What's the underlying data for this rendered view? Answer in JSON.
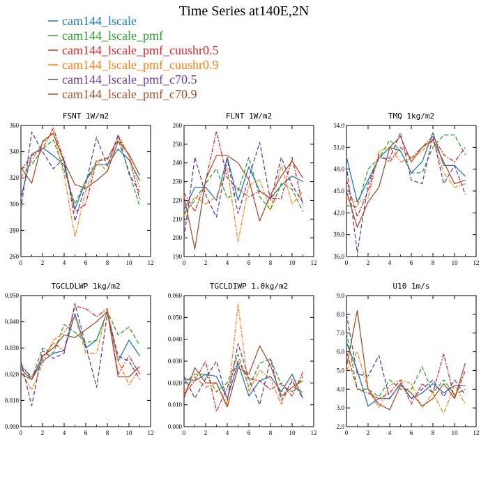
{
  "title": "Time Series at140E,2N",
  "legend": [
    {
      "label": "cam144_lscale",
      "color": "#1f77b4"
    },
    {
      "label": "cam144_lscale_pmf",
      "color": "#2ca02c"
    },
    {
      "label": "cam144_lscale_pmf_cuushr0.5",
      "color": "#d62728"
    },
    {
      "label": "cam144_lscale_pmf_cuushr0.9",
      "color": "#ff7f0e"
    },
    {
      "label": "cam144_lscale_pmf_c70.5",
      "color": "#6a3d9a"
    },
    {
      "label": "cam144_lscale_pmf_c70.9",
      "color": "#a0522d"
    }
  ],
  "chart_data": [
    {
      "type": "line",
      "title": "FSNT   1W/m2",
      "x": [
        0,
        1,
        2,
        3,
        4,
        5,
        6,
        7,
        8,
        9,
        10,
        11
      ],
      "xlim": [
        0,
        12
      ],
      "xticks": [
        "0",
        "2",
        "4",
        "6",
        "8",
        "10",
        "12"
      ],
      "ylim": [
        260,
        360
      ],
      "yticks": [
        "260",
        "280",
        "300",
        "320",
        "340",
        "360"
      ],
      "series": [
        {
          "name": "cam144_lscale",
          "values": [
            305,
            338,
            343,
            337,
            330,
            296,
            318,
            330,
            330,
            342,
            334,
            318
          ]
        },
        {
          "name": "cam144_lscale_pmf",
          "values": [
            327,
            330,
            342,
            349,
            326,
            300,
            318,
            333,
            335,
            349,
            325,
            298
          ]
        },
        {
          "name": "cam144_lscale_pmf_cuushr0.5",
          "values": [
            326,
            337,
            342,
            358,
            333,
            294,
            300,
            333,
            334,
            351,
            337,
            303
          ]
        },
        {
          "name": "cam144_lscale_pmf_cuushr0.9",
          "values": [
            320,
            333,
            347,
            355,
            322,
            275,
            310,
            333,
            325,
            353,
            337,
            313
          ]
        },
        {
          "name": "cam144_lscale_pmf_c70.5",
          "values": [
            296,
            355,
            340,
            327,
            335,
            287,
            315,
            351,
            329,
            353,
            323,
            309
          ]
        },
        {
          "name": "cam144_lscale_pmf_c70.9",
          "values": [
            328,
            316,
            348,
            354,
            332,
            315,
            312,
            318,
            325,
            348,
            338,
            322
          ]
        }
      ]
    },
    {
      "type": "line",
      "title": "FLNT   1W/m2",
      "x": [
        0,
        1,
        2,
        3,
        4,
        5,
        6,
        7,
        8,
        9,
        10,
        11
      ],
      "xlim": [
        0,
        12
      ],
      "xticks": [
        "0",
        "2",
        "4",
        "6",
        "8",
        "10",
        "12"
      ],
      "ylim": [
        190,
        260
      ],
      "yticks": [
        "190",
        "200",
        "210",
        "220",
        "230",
        "240",
        "250",
        "260"
      ],
      "series": [
        {
          "name": "cam144_lscale",
          "values": [
            215,
            227,
            227,
            220,
            243,
            220,
            238,
            225,
            221,
            228,
            233,
            230
          ]
        },
        {
          "name": "cam144_lscale_pmf",
          "values": [
            213,
            220,
            229,
            237,
            221,
            225,
            243,
            222,
            215,
            229,
            226,
            214
          ]
        },
        {
          "name": "cam144_lscale_pmf_cuushr0.5",
          "values": [
            224,
            214,
            230,
            257,
            232,
            226,
            222,
            225,
            221,
            221,
            243,
            217
          ]
        },
        {
          "name": "cam144_lscale_pmf_cuushr0.9",
          "values": [
            212,
            222,
            218,
            222,
            237,
            198,
            228,
            231,
            215,
            239,
            218,
            225
          ]
        },
        {
          "name": "cam144_lscale_pmf_c70.5",
          "values": [
            200,
            243,
            223,
            211,
            242,
            213,
            232,
            251,
            220,
            243,
            228,
            219
          ]
        },
        {
          "name": "cam144_lscale_pmf_c70.9",
          "values": [
            222,
            194,
            231,
            244,
            244,
            240,
            231,
            209,
            223,
            233,
            241,
            232
          ]
        }
      ]
    },
    {
      "type": "line",
      "title": "TMQ   1kg/m2",
      "x": [
        0,
        1,
        2,
        3,
        4,
        5,
        6,
        7,
        8,
        9,
        10,
        11
      ],
      "xlim": [
        0,
        12
      ],
      "xticks": [
        "0",
        "2",
        "4",
        "6",
        "8",
        "10",
        "12"
      ],
      "ylim": [
        36,
        54
      ],
      "yticks": [
        "36.0",
        "39.0",
        "42.0",
        "45.0",
        "48.0",
        "51.0",
        "54.0"
      ],
      "series": [
        {
          "name": "cam144_lscale",
          "values": [
            49.7,
            43.5,
            46.5,
            49.5,
            51.0,
            50.5,
            47.5,
            49.0,
            53.0,
            48.5,
            48.5,
            47.0
          ]
        },
        {
          "name": "cam144_lscale_pmf",
          "values": [
            43.0,
            42.8,
            48.0,
            49.5,
            52.0,
            50.5,
            47.5,
            47.5,
            51.0,
            52.7,
            52.7,
            50.0
          ]
        },
        {
          "name": "cam144_lscale_pmf_cuushr0.5",
          "values": [
            46.5,
            41.5,
            45.0,
            50.0,
            49.0,
            51.0,
            49.5,
            51.0,
            52.5,
            50.0,
            49.0,
            51.0
          ]
        },
        {
          "name": "cam144_lscale_pmf_cuushr0.9",
          "values": [
            44.0,
            43.5,
            44.0,
            50.5,
            51.0,
            49.0,
            49.5,
            50.5,
            52.0,
            47.5,
            45.5,
            46.0
          ]
        },
        {
          "name": "cam144_lscale_pmf_c70.5",
          "values": [
            48.5,
            36.5,
            46.0,
            49.5,
            49.5,
            53.0,
            46.5,
            46.0,
            52.5,
            46.0,
            48.5,
            44.5
          ]
        },
        {
          "name": "cam144_lscale_pmf_c70.9",
          "values": [
            45.0,
            40.0,
            43.5,
            45.5,
            51.0,
            52.5,
            49.0,
            51.0,
            52.0,
            49.0,
            46.0,
            46.5
          ]
        }
      ]
    },
    {
      "type": "line",
      "title": "TGCLDLWP   1kg/m2",
      "x": [
        0,
        1,
        2,
        3,
        4,
        5,
        6,
        7,
        8,
        9,
        10,
        11
      ],
      "xlim": [
        0,
        12
      ],
      "xticks": [
        "0",
        "2",
        "4",
        "6",
        "8",
        "10",
        "12"
      ],
      "ylim": [
        0.0,
        0.05
      ],
      "yticks": [
        "0.000",
        "0.010",
        "0.020",
        "0.030",
        "0.040",
        "0.050"
      ],
      "series": [
        {
          "name": "cam144_lscale",
          "values": [
            0.022,
            0.018,
            0.025,
            0.028,
            0.029,
            0.043,
            0.03,
            0.033,
            0.044,
            0.025,
            0.033,
            0.027
          ]
        },
        {
          "name": "cam144_lscale_pmf",
          "values": [
            0.024,
            0.018,
            0.03,
            0.028,
            0.039,
            0.036,
            0.032,
            0.033,
            0.044,
            0.035,
            0.038,
            0.031
          ]
        },
        {
          "name": "cam144_lscale_pmf_cuushr0.5",
          "values": [
            0.023,
            0.019,
            0.026,
            0.032,
            0.029,
            0.046,
            0.045,
            0.042,
            0.045,
            0.02,
            0.027,
            0.02
          ]
        },
        {
          "name": "cam144_lscale_pmf_cuushr0.9",
          "values": [
            0.021,
            0.014,
            0.024,
            0.033,
            0.036,
            0.042,
            0.028,
            0.028,
            0.045,
            0.025,
            0.016,
            0.022
          ]
        },
        {
          "name": "cam144_lscale_pmf_c70.5",
          "values": [
            0.025,
            0.008,
            0.029,
            0.026,
            0.028,
            0.047,
            0.031,
            0.015,
            0.043,
            0.027,
            0.025,
            0.018
          ]
        },
        {
          "name": "cam144_lscale_pmf_c70.9",
          "values": [
            0.02,
            0.018,
            0.027,
            0.03,
            0.035,
            0.034,
            0.037,
            0.04,
            0.044,
            0.019,
            0.019,
            0.023
          ]
        }
      ]
    },
    {
      "type": "line",
      "title": "TGCLDIWP   1.0kg/m2",
      "x": [
        0,
        1,
        2,
        3,
        4,
        5,
        6,
        7,
        8,
        9,
        10,
        11
      ],
      "xlim": [
        0,
        12
      ],
      "xticks": [
        "0",
        "2",
        "4",
        "6",
        "8",
        "10",
        "12"
      ],
      "ylim": [
        0.0,
        0.06
      ],
      "yticks": [
        "0.000",
        "0.010",
        "0.020",
        "0.030",
        "0.040",
        "0.050",
        "0.060"
      ],
      "series": [
        {
          "name": "cam144_lscale",
          "values": [
            0.022,
            0.021,
            0.024,
            0.023,
            0.013,
            0.029,
            0.014,
            0.021,
            0.023,
            0.016,
            0.024,
            0.013
          ]
        },
        {
          "name": "cam144_lscale_pmf",
          "values": [
            0.02,
            0.024,
            0.024,
            0.016,
            0.02,
            0.033,
            0.018,
            0.029,
            0.031,
            0.019,
            0.016,
            0.023
          ]
        },
        {
          "name": "cam144_lscale_pmf_cuushr0.5",
          "values": [
            0.015,
            0.021,
            0.03,
            0.007,
            0.018,
            0.03,
            0.022,
            0.021,
            0.017,
            0.02,
            0.014,
            0.025
          ]
        },
        {
          "name": "cam144_lscale_pmf_cuushr0.9",
          "values": [
            0.016,
            0.023,
            0.018,
            0.02,
            0.01,
            0.056,
            0.016,
            0.026,
            0.022,
            0.01,
            0.022,
            0.015
          ]
        },
        {
          "name": "cam144_lscale_pmf_c70.5",
          "values": [
            0.023,
            0.013,
            0.022,
            0.03,
            0.012,
            0.038,
            0.022,
            0.01,
            0.031,
            0.012,
            0.021,
            0.013
          ]
        },
        {
          "name": "cam144_lscale_pmf_c70.9",
          "values": [
            0.013,
            0.027,
            0.02,
            0.02,
            0.009,
            0.027,
            0.024,
            0.037,
            0.028,
            0.014,
            0.018,
            0.021
          ]
        }
      ]
    },
    {
      "type": "line",
      "title": "U10   1m/s",
      "x": [
        0,
        1,
        2,
        3,
        4,
        5,
        6,
        7,
        8,
        9,
        10,
        11
      ],
      "xlim": [
        0,
        12
      ],
      "xticks": [
        "0",
        "2",
        "4",
        "6",
        "8",
        "10",
        "12"
      ],
      "ylim": [
        2.0,
        9.0
      ],
      "yticks": [
        "2.0",
        "3.0",
        "4.0",
        "5.0",
        "6.0",
        "7.0",
        "8.0",
        "9.0"
      ],
      "series": [
        {
          "name": "cam144_lscale",
          "values": [
            6.5,
            5.0,
            3.1,
            3.5,
            3.5,
            4.3,
            3.5,
            3.8,
            4.3,
            3.8,
            4.2,
            4.2
          ]
        },
        {
          "name": "cam144_lscale_pmf",
          "values": [
            7.0,
            4.0,
            4.0,
            3.6,
            4.5,
            4.0,
            4.0,
            5.2,
            3.8,
            4.5,
            3.7,
            4.0
          ]
        },
        {
          "name": "cam144_lscale_pmf_cuushr0.5",
          "values": [
            6.0,
            4.0,
            3.8,
            3.5,
            3.8,
            4.5,
            3.2,
            4.3,
            3.8,
            5.9,
            3.5,
            5.0
          ]
        },
        {
          "name": "cam144_lscale_pmf_cuushr0.9",
          "values": [
            5.0,
            6.0,
            4.0,
            3.0,
            4.2,
            4.5,
            4.3,
            3.0,
            3.8,
            2.7,
            4.2,
            3.2
          ]
        },
        {
          "name": "cam144_lscale_pmf_c70.5",
          "values": [
            8.0,
            4.8,
            4.7,
            5.8,
            3.5,
            4.3,
            3.5,
            4.0,
            4.5,
            3.6,
            4.5,
            3.7
          ]
        },
        {
          "name": "cam144_lscale_pmf_c70.9",
          "values": [
            5.2,
            8.2,
            4.0,
            3.2,
            2.9,
            4.2,
            3.8,
            3.1,
            3.5,
            4.3,
            3.5,
            5.4
          ]
        }
      ]
    }
  ]
}
